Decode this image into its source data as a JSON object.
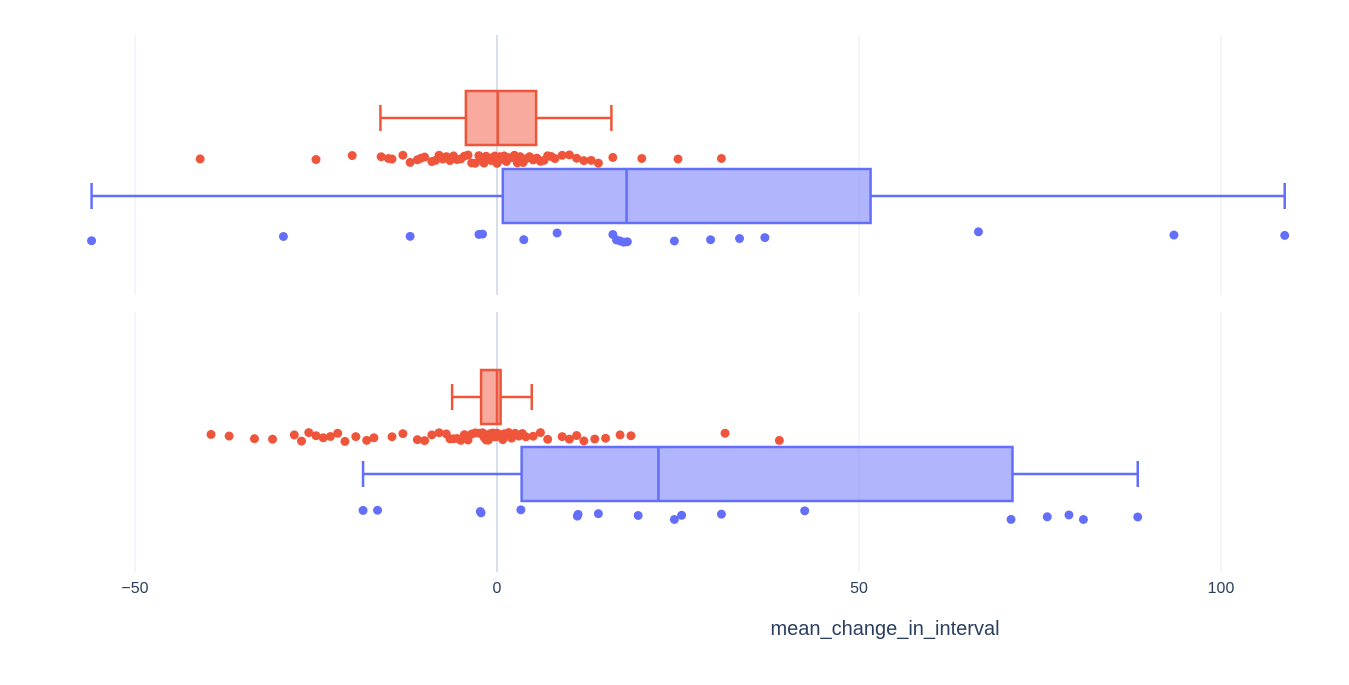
{
  "chart_data": {
    "type": "box",
    "xlabel": "mean_change_in_interval",
    "x_ticks": [
      -50,
      0,
      50,
      100
    ],
    "x_tick_labels": [
      "−50",
      "0",
      "50",
      "100"
    ],
    "xlim": [
      -55,
      110
    ],
    "grid": true,
    "colors": {
      "red": "#EF553B",
      "blue": "#636EFA",
      "grid": "#E5ECF6",
      "text": "#2a3f5f"
    },
    "panels": [
      {
        "boxes": [
          {
            "color": "#EF553B",
            "lowerfence": -16.1,
            "q1": -4.3,
            "median": 0.1,
            "q3": 5.4,
            "upperfence": 15.8,
            "points": [
              -41,
              -25,
              -20,
              -16,
              -15,
              -14.5,
              -13,
              -12,
              -11,
              -10.5,
              -10,
              -9,
              -8.5,
              -8,
              -7.5,
              -7,
              -6.5,
              -6,
              -5.5,
              -5,
              -4.5,
              -4,
              -3.5,
              -3,
              -2.5,
              -2,
              -1.8,
              -1.5,
              -1.2,
              -1,
              -0.8,
              -0.5,
              -0.3,
              0,
              0.2,
              0.4,
              0.6,
              0.8,
              1,
              1.3,
              1.6,
              2,
              2.4,
              2.8,
              3.2,
              3.6,
              4,
              4.5,
              5,
              5.5,
              6,
              6.5,
              7,
              7.5,
              8,
              9,
              10,
              11,
              12,
              13,
              14,
              16,
              20,
              25,
              31
            ]
          },
          {
            "color": "#636EFA",
            "lowerfence": -56,
            "q1": 0.8,
            "median": 17.9,
            "q3": 51.6,
            "upperfence": 108.8,
            "points": [
              -56,
              -29.5,
              -12,
              -2.5,
              -2,
              3.7,
              8.3,
              16,
              16.5,
              17,
              17.5,
              18,
              24.5,
              29.5,
              33.5,
              37,
              66.5,
              93.5,
              108.8
            ]
          }
        ]
      },
      {
        "boxes": [
          {
            "color": "#EF553B",
            "lowerfence": -6.2,
            "q1": -2.2,
            "median": 0,
            "q3": 0.5,
            "upperfence": 4.8,
            "points": [
              -39.5,
              -37,
              -33.5,
              -31,
              -28,
              -27,
              -26,
              -25,
              -24,
              -23,
              -22,
              -21,
              -19.5,
              -18,
              -17,
              -14.5,
              -13,
              -11,
              -10,
              -9,
              -8,
              -7,
              -6.5,
              -6,
              -5.5,
              -5,
              -4.5,
              -4,
              -3.5,
              -3,
              -2.5,
              -2,
              -1.8,
              -1.5,
              -1.2,
              -1,
              -0.8,
              -0.6,
              -0.4,
              -0.2,
              0,
              0.2,
              0.4,
              0.6,
              0.8,
              1,
              1.3,
              1.6,
              2,
              2.5,
              3,
              3.5,
              4,
              5,
              6,
              7,
              9,
              10,
              11,
              12,
              13.5,
              15,
              17,
              18.5,
              31.5,
              39
            ]
          },
          {
            "color": "#636EFA",
            "lowerfence": -18.5,
            "q1": 3.4,
            "median": 22.3,
            "q3": 71.2,
            "upperfence": 88.5,
            "points": [
              -18.5,
              -16.5,
              -2.3,
              -2.2,
              3.3,
              11.1,
              11.2,
              14,
              19.5,
              24.5,
              25.5,
              31,
              42.5,
              71,
              76,
              79,
              81,
              88.5
            ]
          }
        ]
      }
    ]
  }
}
